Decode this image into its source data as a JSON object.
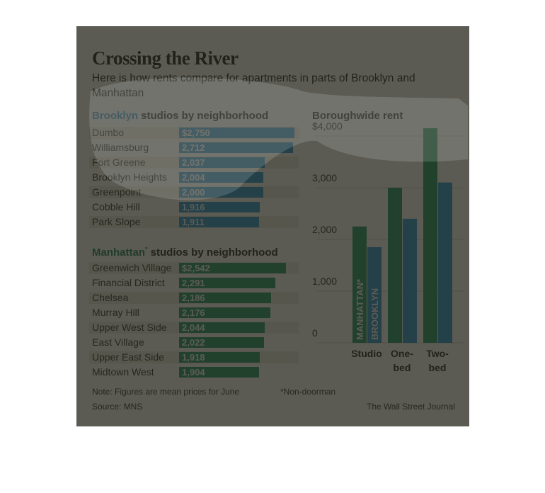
{
  "title": "Crossing the River",
  "subtitle": "Here is how rents compare for apartments in parts of Brooklyn and Manhattan",
  "brooklyn_title": {
    "borough": "Brooklyn",
    "rest": " studios by neighborhood"
  },
  "manhattan_title": {
    "borough": "Manhattan",
    "mark": "*",
    "rest": " studios by neighborhood"
  },
  "boroughwide_title": "Boroughwide rent",
  "note": "Note: Figures are mean prices for June",
  "footnote": "*Non-doorman",
  "source": "Source: MNS",
  "credit": "The Wall Street Journal",
  "colors": {
    "brooklyn": "#1c8fcc",
    "manhattan": "#13915a",
    "stripe": "#ede8dc"
  },
  "chart_data": [
    {
      "type": "bar",
      "title": "Brooklyn studios by neighborhood",
      "categories": [
        "Dumbo",
        "Williamsburg",
        "Fort Greene",
        "Brooklyn Heights",
        "Greenpoint",
        "Cobble Hill",
        "Park Slope"
      ],
      "values": [
        2750,
        2712,
        2037,
        2004,
        2000,
        1916,
        1911
      ],
      "labels": [
        "$2,750",
        "2,712",
        "2,037",
        "2,004",
        "2,000",
        "1,916",
        "1,911"
      ]
    },
    {
      "type": "bar",
      "title": "Manhattan* studios by neighborhood",
      "categories": [
        "Greenwich Village",
        "Financial District",
        "Chelsea",
        "Murray Hill",
        "Upper West Side",
        "East Village",
        "Upper East Side",
        "Midtown West"
      ],
      "values": [
        2542,
        2291,
        2186,
        2176,
        2044,
        2022,
        1918,
        1904
      ],
      "labels": [
        "$2,542",
        "2,291",
        "2,186",
        "2,176",
        "2,044",
        "2,022",
        "1,918",
        "1,904"
      ]
    },
    {
      "type": "bar",
      "title": "Boroughwide rent",
      "categories": [
        "Studio",
        "One-bed",
        "Two-bed"
      ],
      "series": [
        {
          "name": "MANHATTAN*",
          "values": [
            2250,
            3000,
            4150
          ]
        },
        {
          "name": "BROOKLYN",
          "values": [
            1850,
            2400,
            3100
          ]
        }
      ],
      "ylim": [
        0,
        4000
      ],
      "yticks": [
        {
          "value": 0,
          "label": "0"
        },
        {
          "value": 1000,
          "label": "1,000"
        },
        {
          "value": 2000,
          "label": "2,000"
        },
        {
          "value": 3000,
          "label": "3,000"
        },
        {
          "value": 4000,
          "label": "$4,000"
        }
      ],
      "category_labels": [
        [
          "Studio"
        ],
        [
          "One-",
          "bed"
        ],
        [
          "Two-",
          "bed"
        ]
      ]
    }
  ]
}
